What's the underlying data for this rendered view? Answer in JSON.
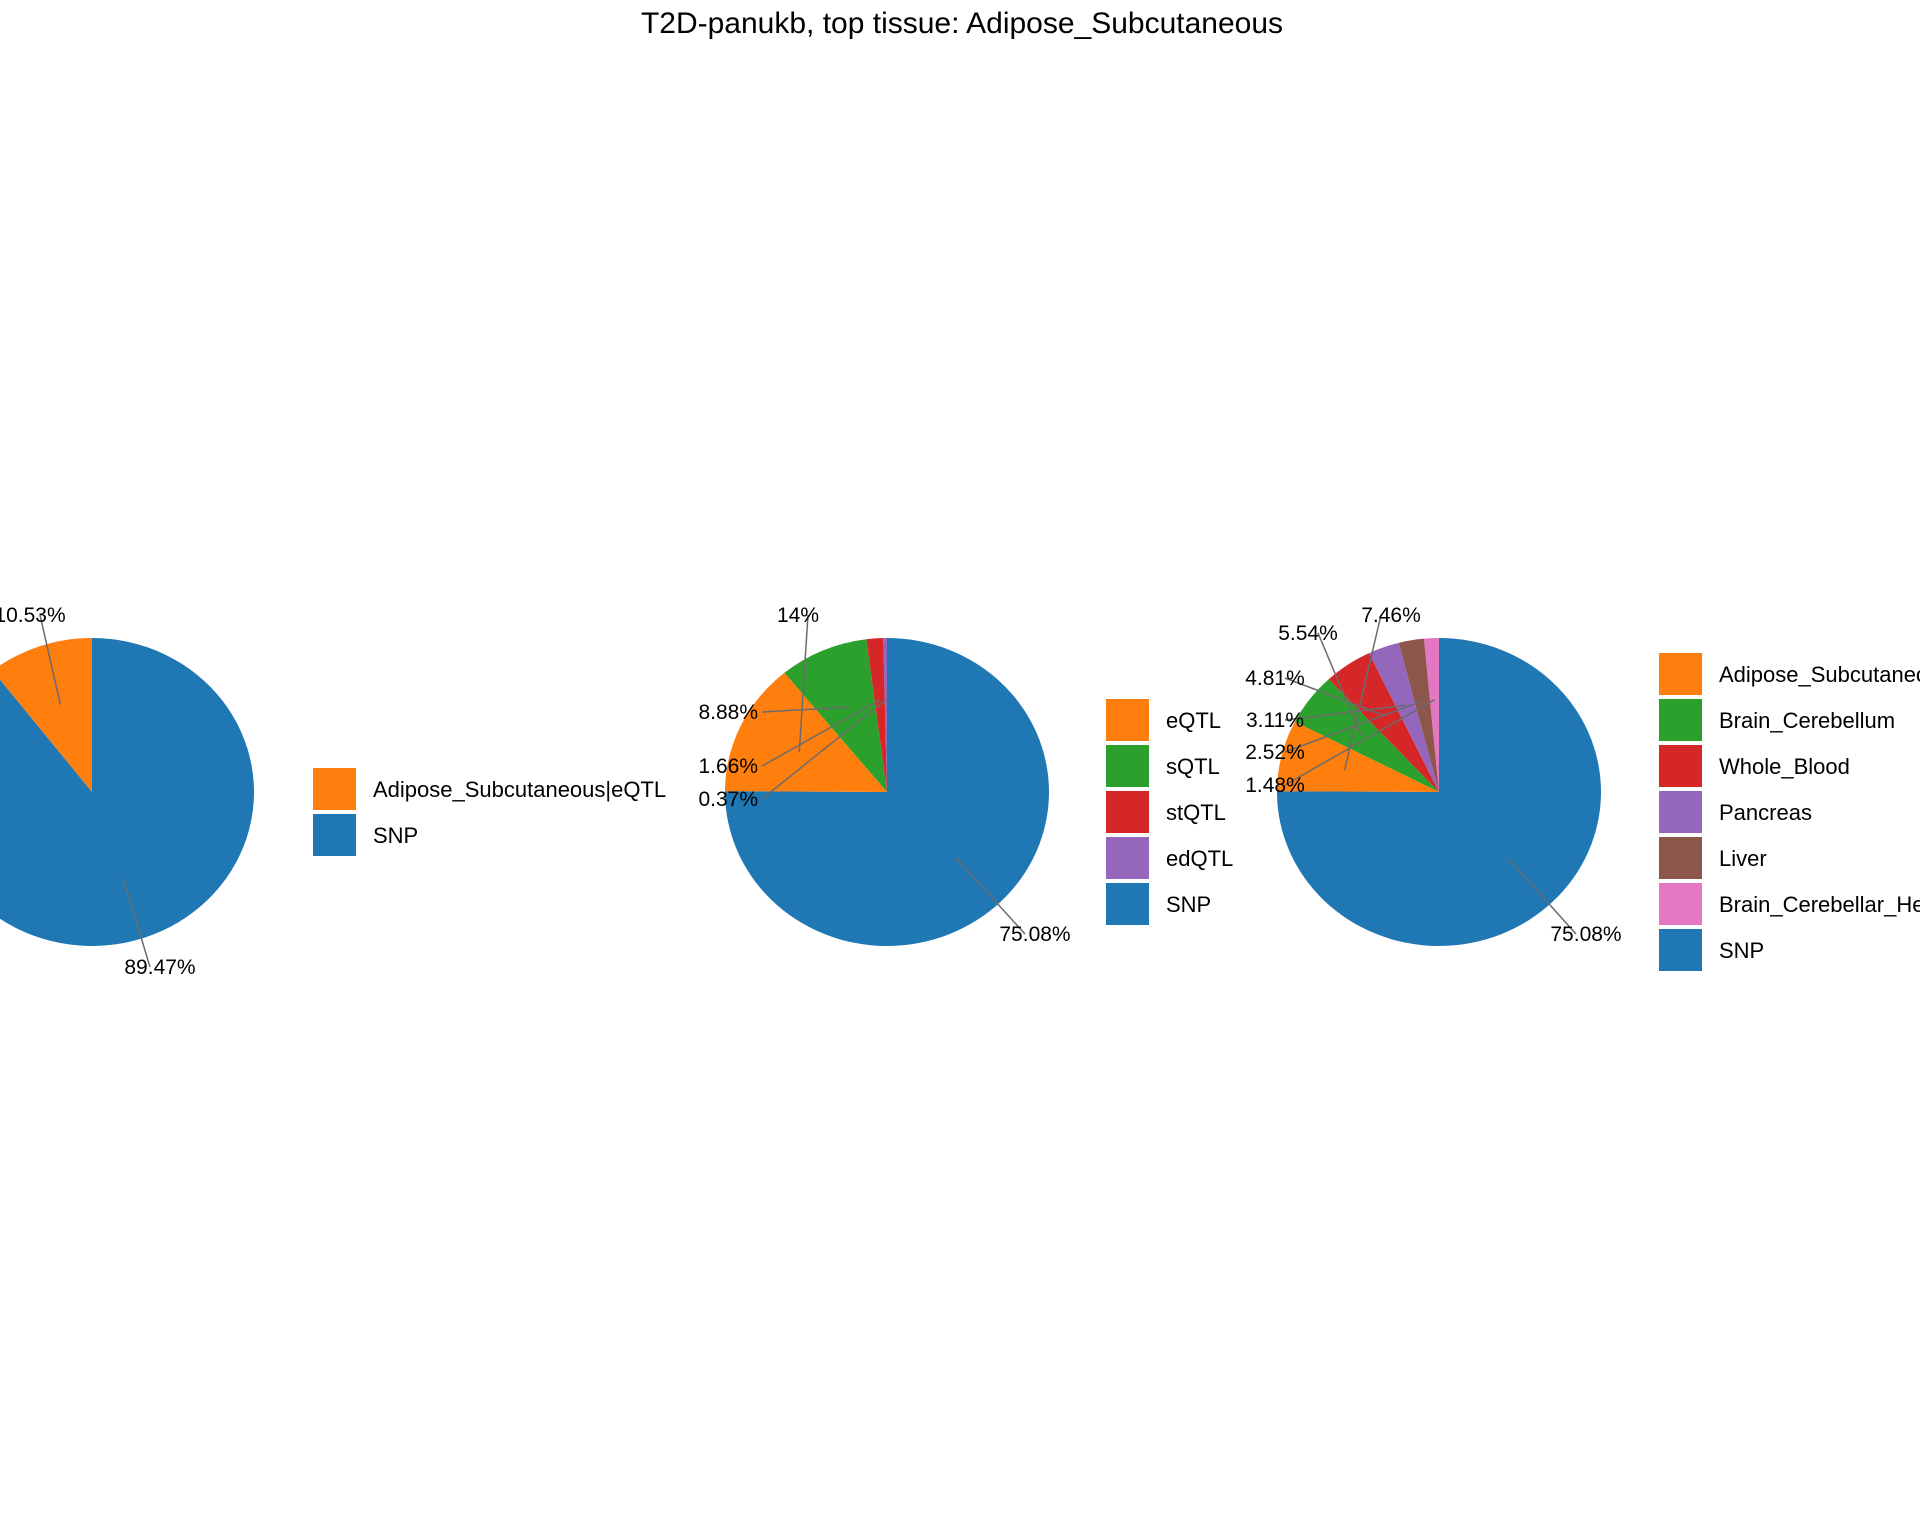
{
  "title": "T2D-panukb, top tissue: Adipose_Subcutaneous",
  "chart_data": [
    {
      "type": "pie",
      "slices": [
        {
          "label": "Adipose_Subcutaneous|eQTL",
          "value": 10.53,
          "text": "10.53%",
          "color": "#ff7f0e"
        },
        {
          "label": "SNP",
          "value": 89.47,
          "text": "89.47%",
          "color": "#1f77b4"
        }
      ],
      "legend": [
        "Adipose_Subcutaneous|eQTL",
        "SNP"
      ]
    },
    {
      "type": "pie",
      "slices": [
        {
          "label": "eQTL",
          "value": 14,
          "text": "14%",
          "color": "#ff7f0e"
        },
        {
          "label": "sQTL",
          "value": 8.88,
          "text": "8.88%",
          "color": "#2ca02c"
        },
        {
          "label": "stQTL",
          "value": 1.66,
          "text": "1.66%",
          "color": "#d62728"
        },
        {
          "label": "edQTL",
          "value": 0.37,
          "text": "0.37%",
          "color": "#9467bd"
        },
        {
          "label": "SNP",
          "value": 75.08,
          "text": "75.08%",
          "color": "#1f77b4"
        }
      ],
      "legend": [
        "eQTL",
        "sQTL",
        "stQTL",
        "edQTL",
        "SNP"
      ]
    },
    {
      "type": "pie",
      "slices": [
        {
          "label": "Adipose_Subcutaneous",
          "value": 7.46,
          "text": "7.46%",
          "color": "#ff7f0e"
        },
        {
          "label": "Brain_Cerebellum",
          "value": 5.54,
          "text": "5.54%",
          "color": "#2ca02c"
        },
        {
          "label": "Whole_Blood",
          "value": 4.81,
          "text": "4.81%",
          "color": "#d62728"
        },
        {
          "label": "Pancreas",
          "value": 3.11,
          "text": "3.11%",
          "color": "#9467bd"
        },
        {
          "label": "Liver",
          "value": 2.52,
          "text": "2.52%",
          "color": "#8c564b"
        },
        {
          "label": "Brain_Cerebellar_Hemisphere",
          "value": 1.48,
          "text": "1.48%",
          "color": "#e377c2"
        },
        {
          "label": "SNP",
          "value": 75.08,
          "text": "75.08%",
          "color": "#1f77b4"
        }
      ],
      "legend": [
        "Adipose_Subcutaneous",
        "Brain_Cerebellum",
        "Whole_Blood",
        "Pancreas",
        "Liver",
        "Brain_Cerebellar_Hemisphere",
        "SNP"
      ]
    }
  ]
}
